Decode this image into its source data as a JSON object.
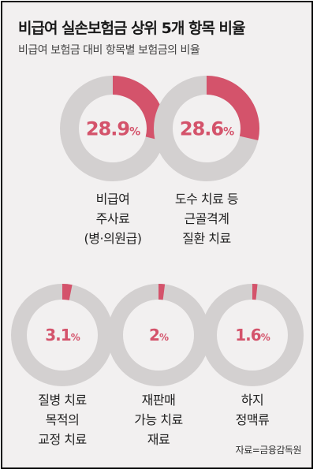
{
  "title": "비급여 실손보험금 상위 5개 항목 비율",
  "subtitle": "비급여 보험금 대비 항목별 보험금의 비율",
  "source": "자료=금융감독원",
  "colors": {
    "accent": "#d4536b",
    "track": "#d3d0d0",
    "background": "#f2f0f0"
  },
  "chart_data": {
    "type": "pie",
    "items": [
      {
        "label": "비급여\n주사료\n(병·의원급)",
        "value": 28.9,
        "value_text": "28.9",
        "unit": "%"
      },
      {
        "label": "도수 치료 등\n근골격계\n질환 치료",
        "value": 28.6,
        "value_text": "28.6",
        "unit": "%"
      },
      {
        "label": "질병 치료\n목적의\n교정 치료",
        "value": 3.1,
        "value_text": "3.1",
        "unit": "%"
      },
      {
        "label": "재판매\n가능 치료\n재료",
        "value": 2,
        "value_text": "2",
        "unit": "%"
      },
      {
        "label": "하지\n정맥류",
        "value": 1.6,
        "value_text": "1.6",
        "unit": "%"
      }
    ]
  }
}
